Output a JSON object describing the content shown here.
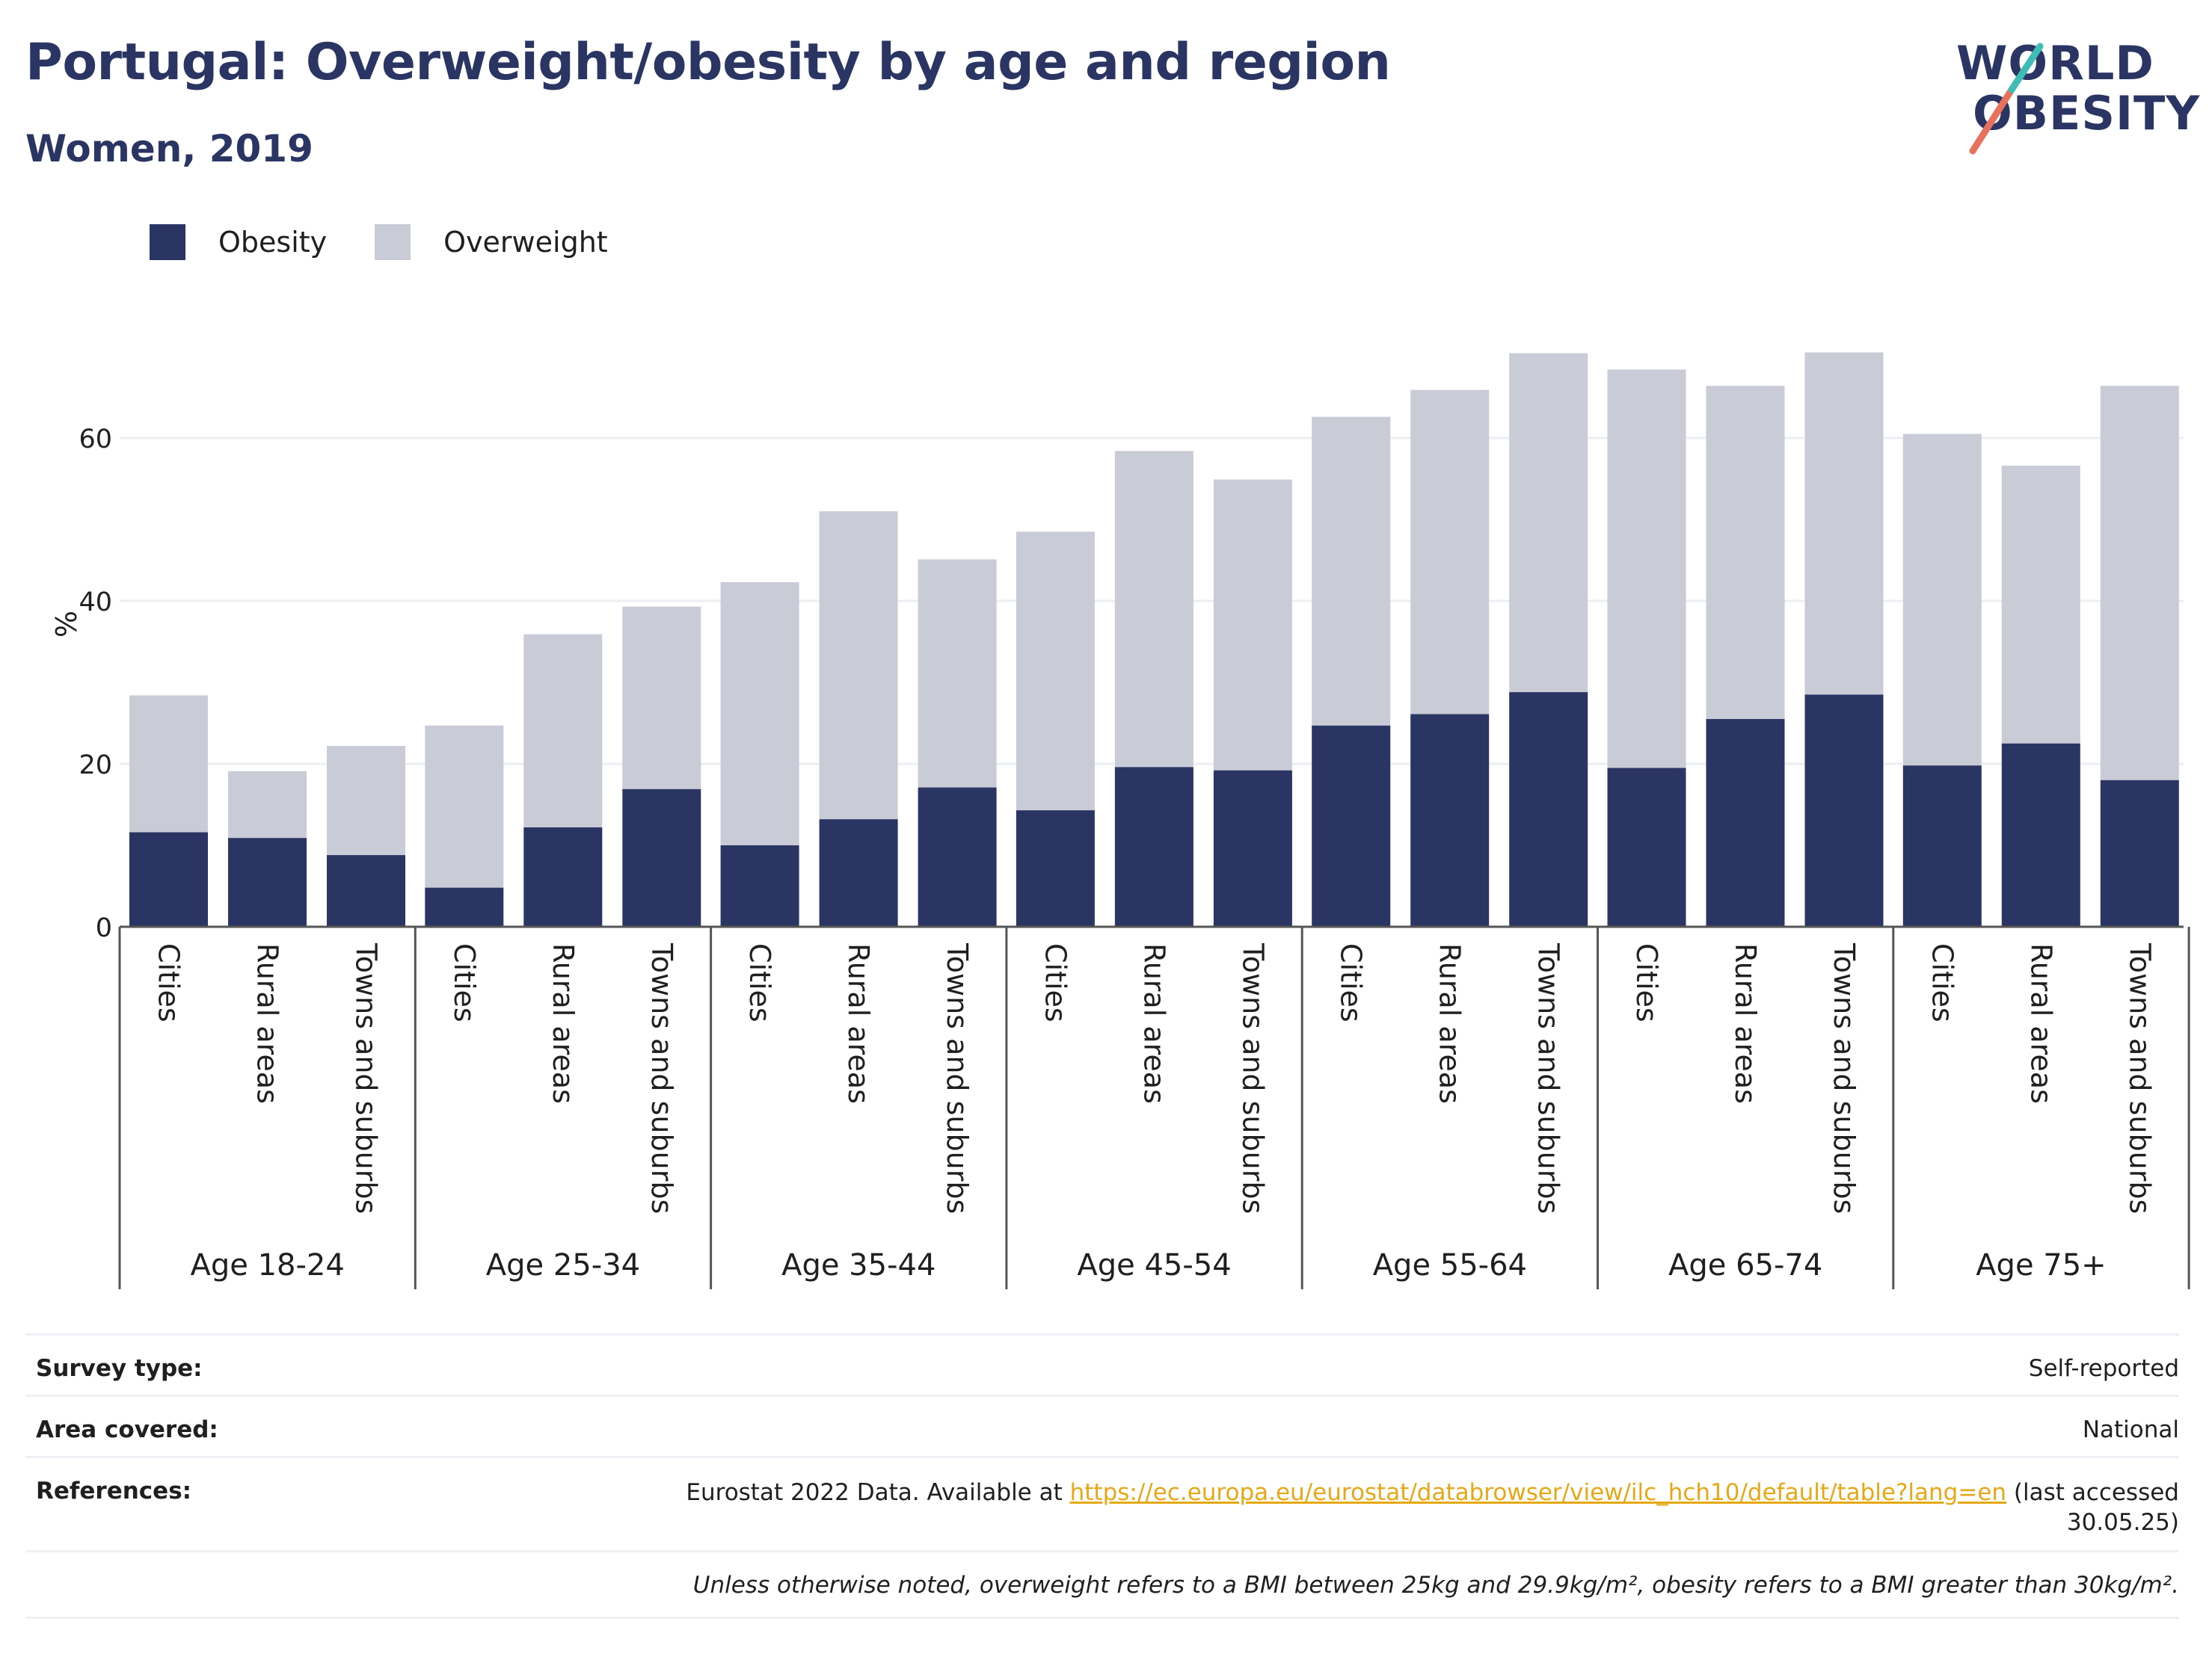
{
  "header": {
    "title": "Portugal: Overweight/obesity by age and region",
    "subtitle": "Women, 2019"
  },
  "logo": {
    "line1": "WORLD",
    "line2": "OBESITY"
  },
  "colors": {
    "obesity": "#2a3563",
    "overweight": "#c9cbd6",
    "title": "#2a3563",
    "link": "#e6a817",
    "logo_slash_red": "#e8715d",
    "logo_slash_teal": "#3fbcb5"
  },
  "legend": [
    {
      "label": "Obesity",
      "color": "#2a3563"
    },
    {
      "label": "Overweight",
      "color": "#c9cbd6"
    }
  ],
  "chart_data": {
    "type": "bar",
    "stacked": true,
    "ylabel": "%",
    "ylim": [
      0,
      75
    ],
    "yticks": [
      0,
      20,
      40,
      60
    ],
    "grid": true,
    "legend_position": "top-left",
    "groups": [
      "Age 18-24",
      "Age 25-34",
      "Age 35-44",
      "Age 45-54",
      "Age 55-64",
      "Age 65-74",
      "Age 75+"
    ],
    "subcategories": [
      "Cities",
      "Rural areas",
      "Towns and suburbs"
    ],
    "series": [
      {
        "name": "Obesity",
        "values": [
          11.6,
          10.9,
          8.8,
          4.8,
          12.2,
          16.9,
          10.0,
          13.2,
          17.1,
          14.3,
          19.6,
          19.2,
          24.7,
          26.1,
          28.8,
          19.5,
          25.5,
          28.5,
          19.8,
          22.5,
          18.0
        ]
      },
      {
        "name": "Overweight",
        "values": [
          16.8,
          8.2,
          13.4,
          19.9,
          23.7,
          22.4,
          32.3,
          37.8,
          28.0,
          34.2,
          38.8,
          35.7,
          37.9,
          39.8,
          41.6,
          48.9,
          40.9,
          42.0,
          40.7,
          34.1,
          48.4
        ]
      }
    ]
  },
  "meta": {
    "survey_type_label": "Survey type:",
    "survey_type_value": "Self-reported",
    "area_label": "Area covered:",
    "area_value": "National",
    "references_label": "References:",
    "ref_prefix": "Eurostat 2022 Data. Available at ",
    "ref_link": "https://ec.europa.eu/eurostat/databrowser/view/ilc_hch10/default/table?lang=en",
    "ref_suffix": " (last accessed",
    "ref_date": "30.05.25)",
    "note": "Unless otherwise noted, overweight refers to a BMI between 25kg and 29.9kg/m², obesity refers to a BMI greater than 30kg/m²."
  }
}
